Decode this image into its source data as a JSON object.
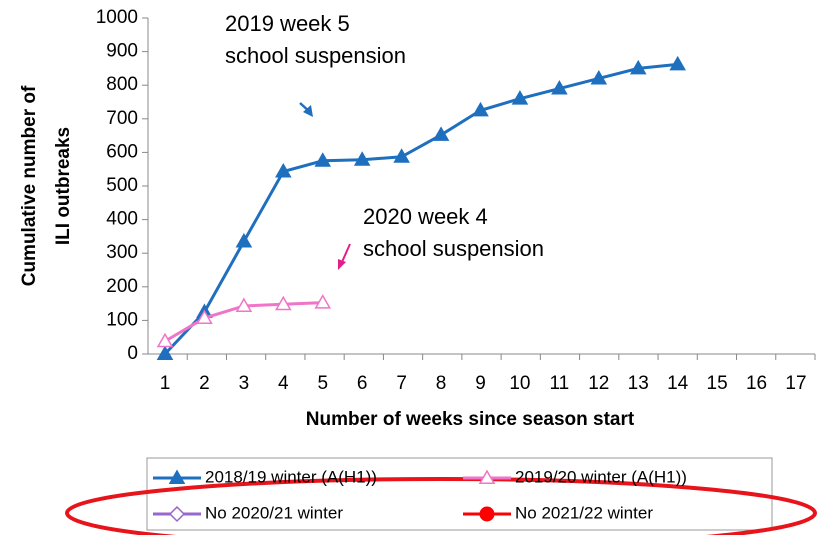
{
  "chart_data": {
    "type": "line",
    "xlabel": "Number of weeks since season start",
    "ylabel": [
      "Cumulative number of",
      "ILI outbreaks"
    ],
    "categories": [
      1,
      2,
      3,
      4,
      5,
      6,
      7,
      8,
      9,
      10,
      11,
      12,
      13,
      14,
      15,
      16,
      17
    ],
    "ylim": [
      0,
      1000
    ],
    "yticks": [
      0,
      100,
      200,
      300,
      400,
      500,
      600,
      700,
      800,
      900,
      1000
    ],
    "series": [
      {
        "name": "2018/19 winter (A(H1))",
        "color": "#1f6fbf",
        "marker": "triangle-filled",
        "values": [
          0,
          125,
          335,
          543,
          575,
          578,
          587,
          652,
          725,
          760,
          790,
          820,
          850,
          862,
          null,
          null,
          null
        ]
      },
      {
        "name": "2019/20 winter (A(H1))",
        "color": "#f075c8",
        "marker": "triangle-open",
        "values": [
          38,
          107,
          143,
          148,
          153,
          null,
          null,
          null,
          null,
          null,
          null,
          null,
          null,
          null,
          null,
          null,
          null
        ]
      },
      {
        "name": "No 2020/21 winter",
        "color": "#9966cc",
        "marker": "diamond-open",
        "values": [
          null,
          null,
          null,
          null,
          null,
          null,
          null,
          null,
          null,
          null,
          null,
          null,
          null,
          null,
          null,
          null,
          null
        ]
      },
      {
        "name": "No 2021/22 winter",
        "color": "#ff0000",
        "marker": "circle-filled",
        "values": [
          null,
          null,
          null,
          null,
          null,
          null,
          null,
          null,
          null,
          null,
          null,
          null,
          null,
          null,
          null,
          null,
          null
        ]
      }
    ],
    "annotations": [
      {
        "lines": [
          "2019 week 5",
          "school suspension"
        ],
        "color": "#1f6fbf"
      },
      {
        "lines": [
          "2020 week 4",
          "school suspension"
        ],
        "color": "#f075c8"
      }
    ]
  }
}
